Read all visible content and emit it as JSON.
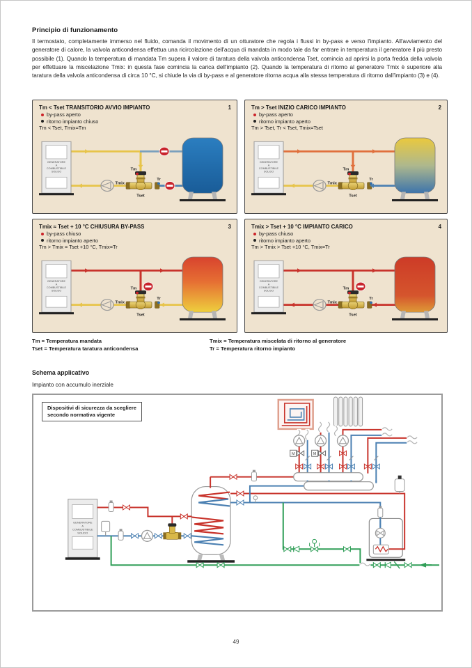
{
  "page": {
    "number": "49"
  },
  "header": {
    "title": "Principio di funzionamento",
    "body": "Il termostato, completamente immerso nel fluido, comanda il movimento di un otturatore che regola i flussi in by-pass e verso l'impianto. All'avviamento del generatore di calore, la valvola anticondensa effettua una ricircolazione dell'acqua di mandata in modo tale da far entrare in temperatura il generatore il più presto possibile (1). Quando la temperatura di mandata Tm supera il valore di taratura della valvola anticondensa Tset, comincia ad aprirsi la porta fredda della valvola per effettuare la miscelazione Tmix: in questa fase comincia la carica dell'impianto (2). Quando la temperatura di ritorno al generatore Tmix è superiore alla taratura della valvola anticondensa di circa 10 °C, si chiude la via di by-pass e al generatore ritorna acqua alla stessa temperatura di ritorno dall'impianto (3) e (4)."
  },
  "panel_labels": {
    "generator_lines": [
      "GENERATORE",
      "A",
      "COMBUSTIBILE",
      "SOLIDO"
    ],
    "tm": "Tm",
    "tmix": "Tmix",
    "tr": "Tr",
    "tset": "Tset"
  },
  "panels": [
    {
      "number": "1",
      "title": "Tm < Tset TRANSITORIO AVVIO IMPIANTO",
      "bullet1": "by-pass aperto",
      "bullet2": "ritorno impianto chiuso",
      "condition": "Tm < Tset, Tmix=Tm",
      "diagram": {
        "supply_left": "#e7c44a",
        "supply_right": "#7aa0bd",
        "bypass": "#e7c44a",
        "return_right": "#4b80b2",
        "return_left": "#e7c44a",
        "tank": [
          [
            "0",
            "#2b7ec0"
          ],
          [
            "1",
            "#195c98"
          ]
        ],
        "arrows": [
          [
            64,
            30,
            "r",
            "#e7c44a"
          ],
          [
            146,
            50,
            "d",
            "#e7c44a"
          ],
          [
            64,
            86,
            "l",
            "#e7c44a"
          ]
        ],
        "signs": [
          [
            180,
            30
          ],
          [
            188,
            86
          ]
        ]
      }
    },
    {
      "number": "2",
      "title": "Tm > Tset INIZIO CARICO IMPIANTO",
      "bullet1": "by-pass aperto",
      "bullet2": "ritorno impianto aperto",
      "condition": "Tm > Tset, Tr < Tset, Tmix=Tset",
      "diagram": {
        "supply_left": "#e0703d",
        "supply_right": "#e0703d",
        "bypass": "#e0703d",
        "return_right": "#4b80b2",
        "return_left": "#e7c44a",
        "tank": [
          [
            "0",
            "#eac93e"
          ],
          [
            "0.5",
            "#aeb88d"
          ],
          [
            "1",
            "#3d74ab"
          ]
        ],
        "arrows": [
          [
            64,
            30,
            "r",
            "#e0703d"
          ],
          [
            172,
            30,
            "r",
            "#e0703d"
          ],
          [
            146,
            50,
            "d",
            "#e0703d"
          ],
          [
            178,
            86,
            "l",
            "#4b80b2"
          ],
          [
            64,
            86,
            "l",
            "#e7c44a"
          ]
        ],
        "signs": []
      }
    },
    {
      "number": "3",
      "title": "Tmix ≈ Tset + 10 °C CHIUSURA BY-PASS",
      "bullet1": "by-pass chiuso",
      "bullet2": "ritorno impianto aperto",
      "condition": "Tm > Tmix = Tset +10 °C, Tmix=Tr",
      "diagram": {
        "supply_left": "#c8332b",
        "supply_right": "#c8332b",
        "bypass": "#c8332b",
        "return_right": "#e7c44a",
        "return_left": "#e7c44a",
        "tank": [
          [
            "0",
            "#d8432e"
          ],
          [
            "0.45",
            "#e66f33"
          ],
          [
            "1",
            "#eecf3d"
          ]
        ],
        "arrows": [
          [
            64,
            30,
            "r",
            "#c8332b"
          ],
          [
            172,
            30,
            "r",
            "#c8332b"
          ],
          [
            182,
            86,
            "l",
            "#e7c44a"
          ],
          [
            64,
            86,
            "l",
            "#e7c44a"
          ]
        ],
        "signs": [
          [
            157,
            56
          ]
        ]
      }
    },
    {
      "number": "4",
      "title": "Tmix > Tset + 10 °C IMPIANTO CARICO",
      "bullet1": "by-pass chiuso",
      "bullet2": "ritorno impianto aperto",
      "condition": "Tm > Tmix > Tset +10 °C, Tmix=Tr",
      "diagram": {
        "supply_left": "#c8332b",
        "supply_right": "#c8332b",
        "bypass": "#c8332b",
        "return_right": "#c8332b",
        "return_left": "#c8332b",
        "tank": [
          [
            "0",
            "#cd3b27"
          ],
          [
            "0.7",
            "#d5552d"
          ],
          [
            "1",
            "#de9a36"
          ]
        ],
        "arrows": [
          [
            64,
            30,
            "r",
            "#c8332b"
          ],
          [
            172,
            30,
            "r",
            "#c8332b"
          ],
          [
            182,
            86,
            "l",
            "#c8332b"
          ],
          [
            64,
            86,
            "l",
            "#c8332b"
          ]
        ],
        "signs": [
          [
            157,
            56
          ]
        ]
      }
    }
  ],
  "legend": {
    "col1": [
      "Tm = Temperatura mandata",
      "Tset = Temperatura taratura anticondensa"
    ],
    "col2": [
      "Tmix = Temperatura miscelata di ritorno al generatore",
      "Tr = Temperatura ritorno impianto"
    ]
  },
  "section": {
    "title": "Schema applicativo",
    "subtitle": "Impianto con accumulo inerziale"
  },
  "schema": {
    "note_line1": "Dispositivi di sicurezza da scegliere",
    "note_line2": "secondo normativa vigente",
    "generator_lines": [
      "GENERATORE",
      "A",
      "COMBUSTIBILE",
      "SOLIDO"
    ],
    "motor_valve_label": "M"
  },
  "colors": {
    "pipe_red": "#c8332b",
    "pipe_blue": "#4b80b2",
    "pipe_green": "#2f9e57",
    "pipe_yellow": "#e7c44a",
    "pipe_orange": "#e0703d",
    "sign_red": "#c8242c",
    "brass": "#d9b84a",
    "panel_bg": "#efe3cf"
  }
}
